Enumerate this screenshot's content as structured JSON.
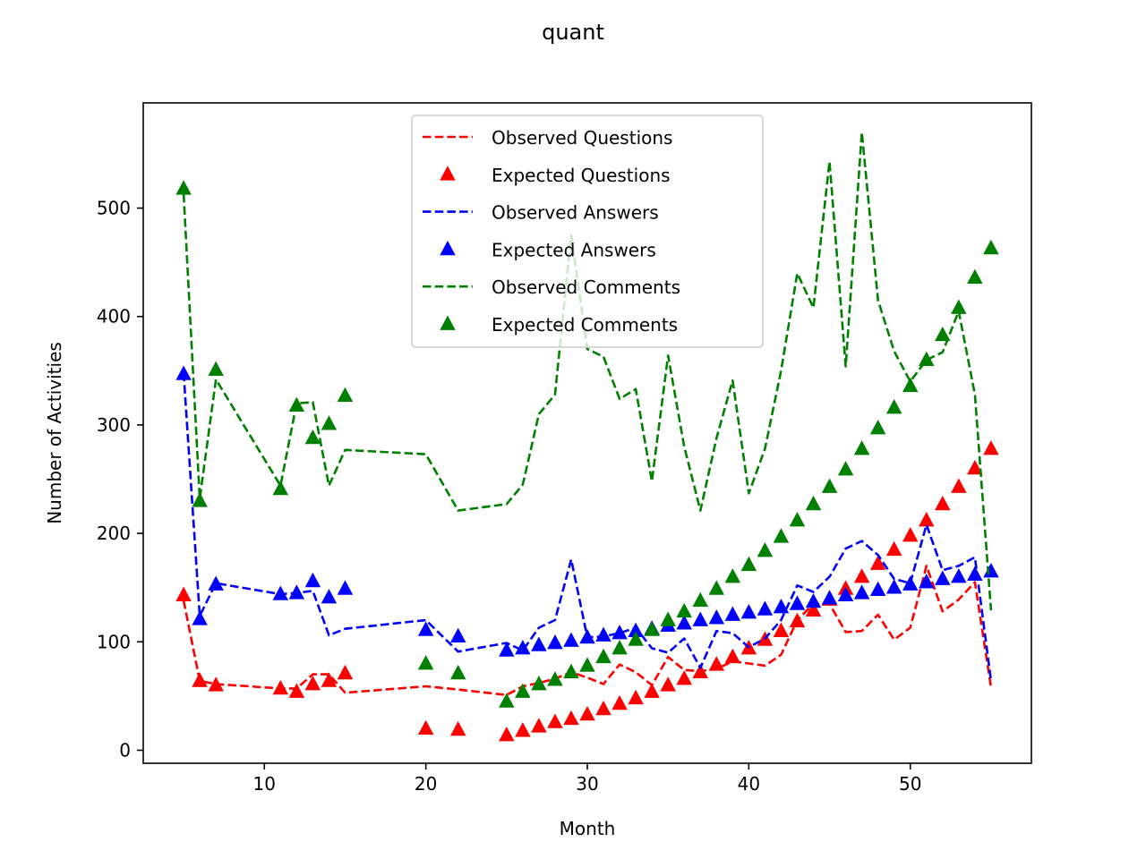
{
  "chart_data": {
    "type": "line",
    "title": "quant",
    "xlabel": "Month",
    "ylabel": "Number of Activities",
    "xlim": [
      2.5,
      57.5
    ],
    "ylim": [
      -12,
      597
    ],
    "xticks": [
      10,
      20,
      30,
      40,
      50
    ],
    "yticks": [
      0,
      100,
      200,
      300,
      400,
      500
    ],
    "grid": false,
    "legend_position": "top-center",
    "series": [
      {
        "name": "Observed Questions",
        "style": "dashed-line",
        "color": "#ff0000",
        "x": [
          5,
          6,
          7,
          11,
          12,
          13,
          14,
          15,
          20,
          22,
          25,
          26,
          27,
          28,
          29,
          30,
          31,
          32,
          33,
          34,
          35,
          36,
          37,
          38,
          39,
          40,
          41,
          42,
          43,
          44,
          45,
          46,
          47,
          48,
          49,
          50,
          51,
          52,
          53,
          54,
          55
        ],
        "y": [
          138,
          64,
          61,
          57,
          57,
          70,
          70,
          53,
          59,
          56,
          51,
          59,
          62,
          66,
          72,
          67,
          61,
          79,
          72,
          60,
          86,
          74,
          73,
          75,
          82,
          80,
          78,
          88,
          120,
          135,
          135,
          109,
          110,
          125,
          102,
          113,
          170,
          128,
          139,
          155,
          58
        ]
      },
      {
        "name": "Expected Questions",
        "style": "triangle-markers",
        "color": "#ff0000",
        "x": [
          5,
          6,
          7,
          11,
          12,
          13,
          14,
          15,
          20,
          22,
          25,
          26,
          27,
          28,
          29,
          30,
          31,
          32,
          33,
          34,
          35,
          36,
          37,
          38,
          39,
          40,
          41,
          42,
          43,
          44,
          45,
          46,
          47,
          48,
          49,
          50,
          51,
          52,
          53,
          54,
          55
        ],
        "y": [
          143,
          64,
          60,
          57,
          54,
          61,
          64,
          71,
          20,
          19,
          14,
          18,
          22,
          26,
          29,
          33,
          38,
          43,
          48,
          54,
          60,
          66,
          72,
          79,
          86,
          94,
          102,
          110,
          119,
          129,
          139,
          149,
          160,
          172,
          185,
          198,
          212,
          227,
          243,
          260,
          278
        ]
      },
      {
        "name": "Observed Answers",
        "style": "dashed-line",
        "color": "#0000ff",
        "x": [
          5,
          6,
          7,
          11,
          12,
          13,
          14,
          15,
          20,
          22,
          25,
          26,
          27,
          28,
          29,
          30,
          31,
          32,
          33,
          34,
          35,
          36,
          37,
          38,
          39,
          40,
          41,
          42,
          43,
          44,
          45,
          46,
          47,
          48,
          49,
          50,
          51,
          52,
          53,
          54,
          55
        ],
        "y": [
          348,
          124,
          154,
          144,
          145,
          147,
          106,
          112,
          120,
          91,
          99,
          92,
          113,
          120,
          176,
          104,
          105,
          108,
          113,
          94,
          90,
          103,
          76,
          110,
          108,
          95,
          103,
          120,
          152,
          146,
          160,
          186,
          193,
          180,
          158,
          154,
          208,
          166,
          170,
          178,
          64
        ]
      },
      {
        "name": "Expected Answers",
        "style": "triangle-markers",
        "color": "#0000ff",
        "x": [
          5,
          6,
          7,
          11,
          12,
          13,
          14,
          15,
          20,
          22,
          25,
          26,
          27,
          28,
          29,
          30,
          31,
          32,
          33,
          34,
          35,
          36,
          37,
          38,
          39,
          40,
          41,
          42,
          43,
          44,
          45,
          46,
          47,
          48,
          49,
          50,
          51,
          52,
          53,
          54,
          55
        ],
        "y": [
          347,
          121,
          153,
          144,
          145,
          156,
          141,
          149,
          111,
          105,
          92,
          94,
          97,
          99,
          101,
          104,
          106,
          108,
          110,
          112,
          115,
          117,
          120,
          122,
          125,
          127,
          130,
          132,
          135,
          137,
          140,
          143,
          145,
          148,
          150,
          153,
          155,
          158,
          160,
          162,
          165
        ]
      },
      {
        "name": "Observed Comments",
        "style": "dashed-line",
        "color": "#008000",
        "x": [
          5,
          6,
          7,
          11,
          12,
          13,
          14,
          15,
          20,
          22,
          25,
          26,
          27,
          28,
          29,
          30,
          31,
          32,
          33,
          34,
          35,
          36,
          37,
          38,
          39,
          40,
          41,
          42,
          43,
          44,
          45,
          46,
          47,
          48,
          49,
          50,
          51,
          52,
          53,
          54,
          55
        ],
        "y": [
          513,
          232,
          342,
          244,
          320,
          321,
          244,
          277,
          273,
          221,
          227,
          245,
          310,
          328,
          475,
          370,
          363,
          324,
          333,
          248,
          364,
          280,
          221,
          288,
          341,
          237,
          278,
          350,
          440,
          408,
          543,
          354,
          570,
          415,
          368,
          340,
          360,
          367,
          405,
          328,
          129
        ]
      },
      {
        "name": "Expected Comments",
        "style": "triangle-markers",
        "color": "#008000",
        "x": [
          5,
          6,
          7,
          11,
          12,
          13,
          14,
          15,
          20,
          22,
          25,
          26,
          27,
          28,
          29,
          30,
          31,
          32,
          33,
          34,
          35,
          36,
          37,
          38,
          39,
          40,
          41,
          42,
          43,
          44,
          45,
          46,
          47,
          48,
          49,
          50,
          51,
          52,
          53,
          54,
          55
        ],
        "y": [
          518,
          230,
          351,
          241,
          318,
          288,
          301,
          327,
          80,
          71,
          45,
          54,
          61,
          65,
          72,
          78,
          86,
          94,
          102,
          111,
          120,
          128,
          138,
          149,
          160,
          171,
          184,
          197,
          212,
          227,
          243,
          259,
          278,
          297,
          316,
          336,
          360,
          383,
          408,
          436,
          463
        ]
      }
    ]
  }
}
